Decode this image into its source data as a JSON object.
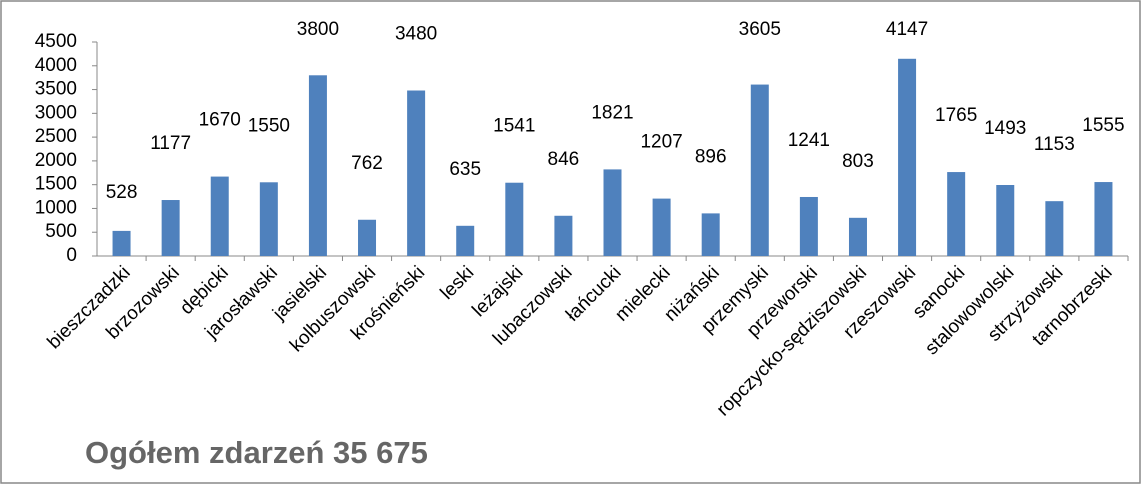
{
  "chart_data": {
    "type": "bar",
    "categories": [
      "bieszczadzki",
      "brzozowski",
      "dębicki",
      "jarosławski",
      "jasielski",
      "kolbuszowski",
      "krośnieński",
      "leski",
      "leżajski",
      "lubaczowski",
      "łańcucki",
      "mielecki",
      "niżański",
      "przemyski",
      "przeworski",
      "ropczycko-sędziszowski",
      "rzeszowski",
      "sanocki",
      "stalowowolski",
      "strzyżowski",
      "tarnobrzeski"
    ],
    "values": [
      528,
      1177,
      1670,
      1550,
      3800,
      762,
      3480,
      635,
      1541,
      846,
      1821,
      1207,
      896,
      3605,
      1241,
      803,
      4147,
      1765,
      1493,
      1153,
      1555
    ],
    "color": "#4f81bd",
    "ylim": [
      0,
      4500
    ],
    "yticks": [
      0,
      500,
      1000,
      1500,
      2000,
      2500,
      3000,
      3500,
      4000,
      4500
    ],
    "grid": false
  },
  "footer": "Ogółem zdarzeń 35 675"
}
